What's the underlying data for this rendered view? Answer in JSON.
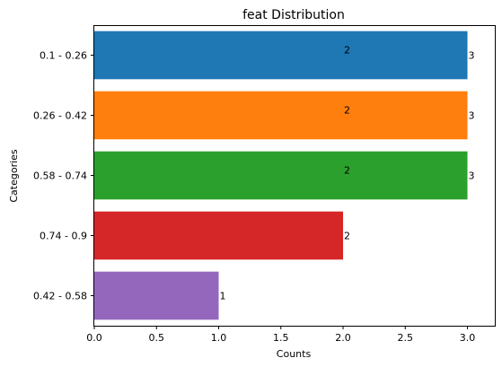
{
  "chart_data": {
    "type": "bar",
    "orientation": "horizontal",
    "title": "feat Distribution",
    "xlabel": "Counts",
    "ylabel": "Categories",
    "categories": [
      "0.1 - 0.26",
      "0.26 - 0.42",
      "0.58 - 0.74",
      "0.74 - 0.9",
      "0.42 - 0.58"
    ],
    "values": [
      3,
      3,
      3,
      2,
      1
    ],
    "bar_colors": [
      "#1f77b4",
      "#ff7f0e",
      "#2ca02c",
      "#d62728",
      "#9467bd"
    ],
    "bar_labels_end": [
      "3",
      "3",
      "3",
      "2",
      "1"
    ],
    "bar_labels_mid": [
      "2",
      "2",
      "2"
    ],
    "xlim": [
      0,
      3.22
    ],
    "xticks": [
      "0.0",
      "0.5",
      "1.0",
      "1.5",
      "2.0",
      "2.5",
      "3.0"
    ],
    "xtick_values": [
      0,
      0.5,
      1,
      1.5,
      2,
      2.5,
      3
    ],
    "grid": false,
    "legend": "none"
  }
}
